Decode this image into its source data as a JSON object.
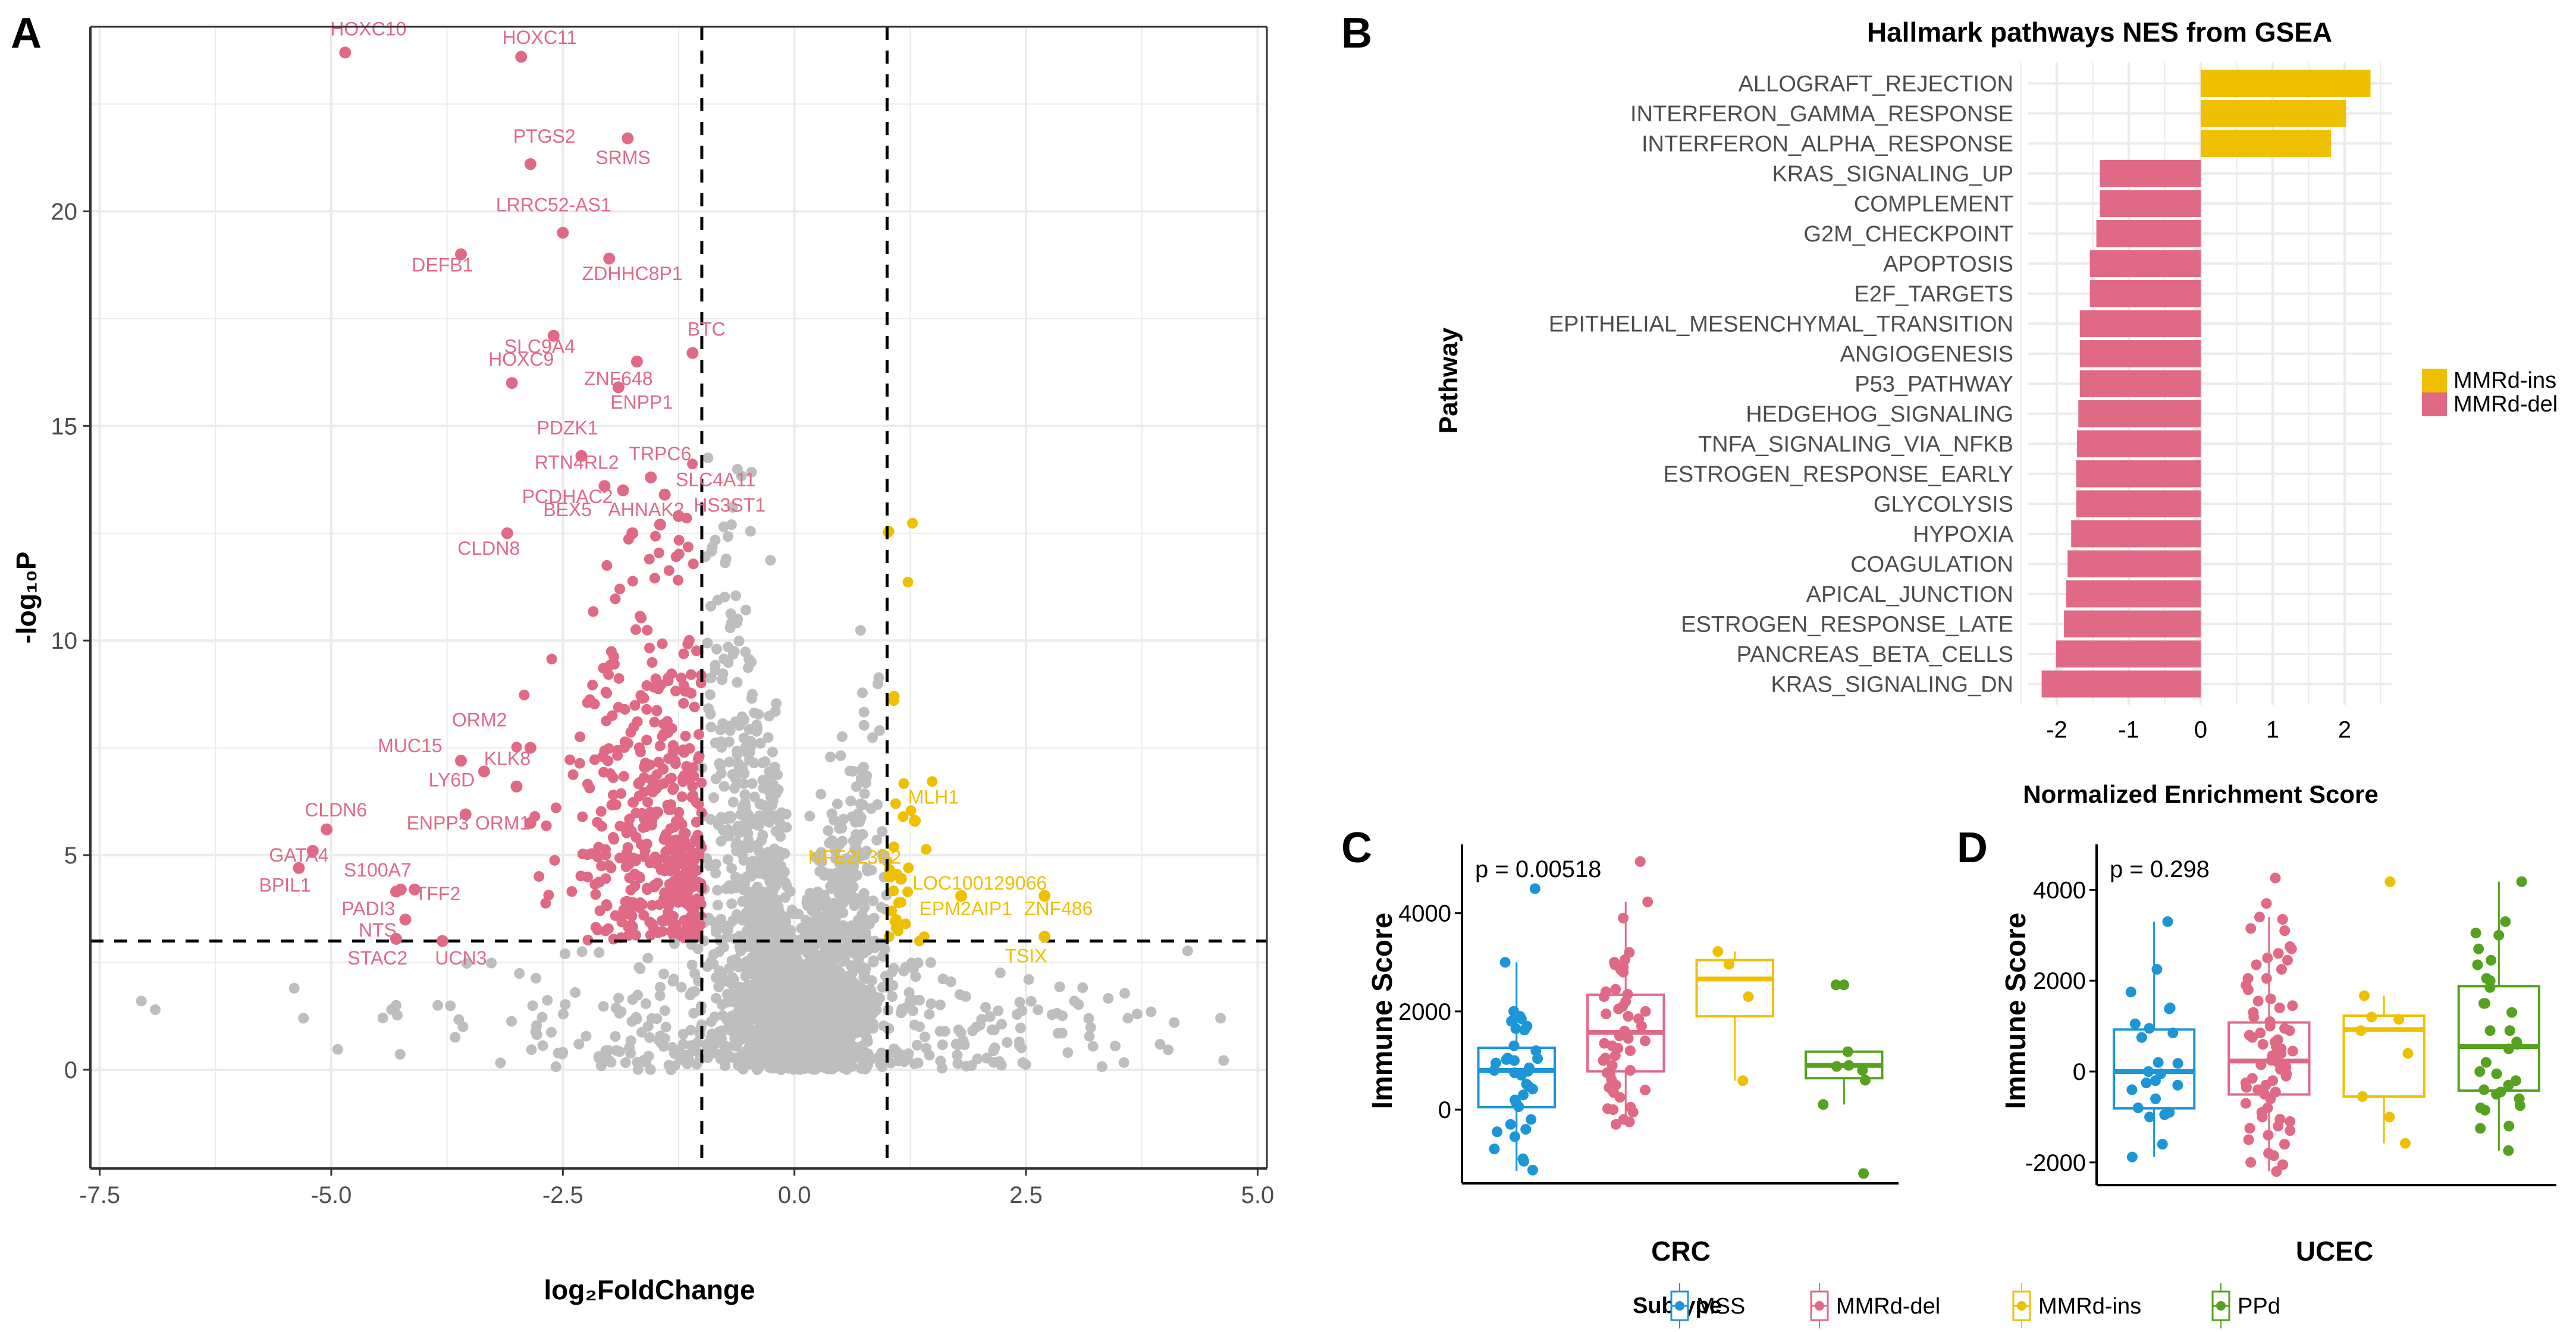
{
  "colors": {
    "del": "#E06A86",
    "ins": "#EFC000",
    "ns": "#BEBEBE",
    "mss": "#1C96D7",
    "ppd": "#54A21F",
    "grid": "#EBEBEB"
  },
  "chart_data": [
    {
      "panel": "A",
      "type": "scatter",
      "title": "",
      "xlabel": "log₂FoldChange",
      "ylabel": "-log₁₀P",
      "xlim": [
        -7.6,
        5.1
      ],
      "ylim": [
        -2.3,
        24.3
      ],
      "xticks": [
        -7.5,
        -5.0,
        -2.5,
        0.0,
        2.5,
        5.0
      ],
      "xtick_labels": [
        "-7.5",
        "-5.0",
        "-2.5",
        "0.0",
        "2.5",
        "5.0"
      ],
      "yticks": [
        0,
        5,
        10,
        15,
        20
      ],
      "ytick_labels": [
        "0",
        "5",
        "10",
        "15",
        "20"
      ],
      "thresholds": {
        "log2fc": [
          -1,
          1
        ],
        "neg_log10_p": 3
      },
      "grid": true,
      "labeled_points": [
        {
          "gene": "HOXC10",
          "x": -4.85,
          "y": 23.7,
          "group": "del",
          "lx": -4.6,
          "ly": 24.1
        },
        {
          "gene": "HOXC11",
          "x": -2.95,
          "y": 23.6,
          "group": "del",
          "lx": -2.75,
          "ly": 23.9
        },
        {
          "gene": "SRMS",
          "x": -1.8,
          "y": 21.7,
          "group": "del",
          "lx": -1.85,
          "ly": 21.1
        },
        {
          "gene": "PTGS2",
          "x": -2.85,
          "y": 21.1,
          "group": "del",
          "lx": -2.7,
          "ly": 21.6
        },
        {
          "gene": "LRRC52-AS1",
          "x": -2.5,
          "y": 19.5,
          "group": "del",
          "lx": -2.6,
          "ly": 20.0
        },
        {
          "gene": "DEFB1",
          "x": -3.6,
          "y": 19.0,
          "group": "del",
          "lx": -3.8,
          "ly": 18.6
        },
        {
          "gene": "ZDHHC8P1",
          "x": -2.0,
          "y": 18.9,
          "group": "del",
          "lx": -1.75,
          "ly": 18.4
        },
        {
          "gene": "SLC9A4",
          "x": -2.6,
          "y": 17.1,
          "group": "del",
          "lx": -2.75,
          "ly": 16.7
        },
        {
          "gene": "BTC",
          "x": -1.1,
          "y": 16.7,
          "group": "del",
          "lx": -0.95,
          "ly": 17.1
        },
        {
          "gene": "ZNF648",
          "x": -1.7,
          "y": 16.5,
          "group": "del",
          "lx": -1.9,
          "ly": 15.95
        },
        {
          "gene": "HOXC9",
          "x": -3.05,
          "y": 16.0,
          "group": "del",
          "lx": -2.95,
          "ly": 16.4
        },
        {
          "gene": "ENPP1",
          "x": -1.9,
          "y": 15.9,
          "group": "del",
          "lx": -1.65,
          "ly": 15.4
        },
        {
          "gene": "PDZK1",
          "x": -2.3,
          "y": 14.3,
          "group": "del",
          "lx": -2.45,
          "ly": 14.8
        },
        {
          "gene": "TRPC6",
          "x": -1.55,
          "y": 13.8,
          "group": "del",
          "lx": -1.45,
          "ly": 14.2
        },
        {
          "gene": "RTN4RL2",
          "x": -2.05,
          "y": 13.6,
          "group": "del",
          "lx": -2.35,
          "ly": 14.0
        },
        {
          "gene": "SLC4A11",
          "x": -1.4,
          "y": 13.4,
          "group": "del",
          "lx": -0.85,
          "ly": 13.6
        },
        {
          "gene": "PCDHAC2",
          "x": -1.85,
          "y": 13.5,
          "group": "del",
          "lx": -2.45,
          "ly": 13.2
        },
        {
          "gene": "HS3ST1",
          "x": -1.25,
          "y": 12.9,
          "group": "del",
          "lx": -0.7,
          "ly": 13.0
        },
        {
          "gene": "AHNAK2",
          "x": -1.45,
          "y": 12.7,
          "group": "del",
          "lx": -1.6,
          "ly": 12.9
        },
        {
          "gene": "BEX5",
          "x": -1.75,
          "y": 12.5,
          "group": "del",
          "lx": -2.45,
          "ly": 12.9
        },
        {
          "gene": "CLDN8",
          "x": -3.1,
          "y": 12.5,
          "group": "del",
          "lx": -3.3,
          "ly": 12.0
        },
        {
          "gene": "ORM2",
          "x": -2.85,
          "y": 7.5,
          "group": "del",
          "lx": -3.4,
          "ly": 8.0
        },
        {
          "gene": "MUC15",
          "x": -3.6,
          "y": 7.2,
          "group": "del",
          "lx": -4.15,
          "ly": 7.4
        },
        {
          "gene": "KLK8",
          "x": -3.35,
          "y": 6.95,
          "group": "del",
          "lx": -3.1,
          "ly": 7.1
        },
        {
          "gene": "LY6D",
          "x": -3.0,
          "y": 6.6,
          "group": "del",
          "lx": -3.7,
          "ly": 6.6
        },
        {
          "gene": "CLDN6",
          "x": -5.05,
          "y": 5.6,
          "group": "del",
          "lx": -4.95,
          "ly": 5.9
        },
        {
          "gene": "ENPP3",
          "x": -3.55,
          "y": 5.95,
          "group": "del",
          "lx": -3.85,
          "ly": 5.6
        },
        {
          "gene": "ORM1",
          "x": -2.85,
          "y": 5.75,
          "group": "del",
          "lx": -3.15,
          "ly": 5.6
        },
        {
          "gene": "GATA4",
          "x": -5.2,
          "y": 5.1,
          "group": "del",
          "lx": -5.35,
          "ly": 4.85
        },
        {
          "gene": "S100A7",
          "x": -4.1,
          "y": 4.2,
          "group": "del",
          "lx": -4.5,
          "ly": 4.5
        },
        {
          "gene": "BPIL1",
          "x": -5.35,
          "y": 4.7,
          "group": "del",
          "lx": -5.5,
          "ly": 4.15
        },
        {
          "gene": "TFF2",
          "x": -4.25,
          "y": 4.2,
          "group": "del",
          "lx": -3.85,
          "ly": 3.95
        },
        {
          "gene": "PADI3",
          "x": -4.3,
          "y": 4.15,
          "group": "del",
          "lx": -4.6,
          "ly": 3.6
        },
        {
          "gene": "NTS",
          "x": -4.2,
          "y": 3.5,
          "group": "del",
          "lx": -4.5,
          "ly": 3.1
        },
        {
          "gene": "STAC2",
          "x": -4.3,
          "y": 3.05,
          "group": "del",
          "lx": -4.5,
          "ly": 2.45
        },
        {
          "gene": "UCN3",
          "x": -3.8,
          "y": 3.0,
          "group": "del",
          "lx": -3.6,
          "ly": 2.45
        },
        {
          "gene": "MLH1",
          "x": 1.3,
          "y": 5.8,
          "group": "ins",
          "lx": 1.5,
          "ly": 6.2
        },
        {
          "gene": "NFE2L3P2",
          "x": 1.03,
          "y": 4.5,
          "group": "ins",
          "lx": 0.65,
          "ly": 4.8
        },
        {
          "gene": "LOC100129066",
          "x": 1.15,
          "y": 4.45,
          "group": "ins",
          "lx": 2.0,
          "ly": 4.2
        },
        {
          "gene": "EPM2AIP1",
          "x": 1.8,
          "y": 4.05,
          "group": "ins",
          "lx": 1.85,
          "ly": 3.6
        },
        {
          "gene": "ZNF486",
          "x": 2.7,
          "y": 4.05,
          "group": "ins",
          "lx": 2.85,
          "ly": 3.6
        },
        {
          "gene": "TSIX",
          "x": 2.7,
          "y": 3.1,
          "group": "ins",
          "lx": 2.5,
          "ly": 2.5
        }
      ]
    },
    {
      "panel": "B",
      "type": "bar",
      "orientation": "horizontal",
      "title": "Hallmark pathways NES from GSEA",
      "xlabel": "Normalized Enrichment Score",
      "ylabel": "Pathway",
      "xlim": [
        -2.45,
        2.6
      ],
      "xticks": [
        -2,
        -1,
        0,
        1,
        2
      ],
      "xtick_labels": [
        "-2",
        "-1",
        "0",
        "1",
        "2"
      ],
      "legend": [
        {
          "label": "MMRd-ins",
          "group": "ins"
        },
        {
          "label": "MMRd-del",
          "group": "del"
        }
      ],
      "legend_position": "right",
      "categories": [
        "ALLOGRAFT_REJECTION",
        "INTERFERON_GAMMA_RESPONSE",
        "INTERFERON_ALPHA_RESPONSE",
        "KRAS_SIGNALING_UP",
        "COMPLEMENT",
        "G2M_CHECKPOINT",
        "APOPTOSIS",
        "E2F_TARGETS",
        "EPITHELIAL_MESENCHYMAL_TRANSITION",
        "ANGIOGENESIS",
        "P53_PATHWAY",
        "HEDGEHOG_SIGNALING",
        "TNFA_SIGNALING_VIA_NFKB",
        "ESTROGEN_RESPONSE_EARLY",
        "GLYCOLYSIS",
        "HYPOXIA",
        "COAGULATION",
        "APICAL_JUNCTION",
        "ESTROGEN_RESPONSE_LATE",
        "PANCREAS_BETA_CELLS",
        "KRAS_SIGNALING_DN"
      ],
      "values": [
        2.36,
        2.02,
        1.81,
        -1.4,
        -1.4,
        -1.45,
        -1.54,
        -1.54,
        -1.68,
        -1.68,
        -1.68,
        -1.7,
        -1.72,
        -1.73,
        -1.73,
        -1.8,
        -1.85,
        -1.87,
        -1.9,
        -2.01,
        -2.21
      ],
      "groups": [
        "ins",
        "ins",
        "ins",
        "del",
        "del",
        "del",
        "del",
        "del",
        "del",
        "del",
        "del",
        "del",
        "del",
        "del",
        "del",
        "del",
        "del",
        "del",
        "del",
        "del",
        "del"
      ]
    },
    {
      "panel": "C",
      "type": "box",
      "title": "",
      "xlabel": "CRC",
      "ylabel": "Immune Score",
      "annotation": "p = 0.00518",
      "ylim": [
        -1500,
        5400
      ],
      "yticks": [
        0,
        2000,
        4000
      ],
      "ytick_labels": [
        "0",
        "2000",
        "4000"
      ],
      "boxes": [
        {
          "group": "MSS",
          "color": "mss",
          "lower": -1250,
          "q1": 50,
          "median": 800,
          "q3": 1260,
          "upper": 3000,
          "points": [
            4500,
            3000,
            2000,
            1900,
            1850,
            1800,
            1700,
            1650,
            1620,
            1300,
            1200,
            1050,
            1040,
            1020,
            1000,
            950,
            850,
            800,
            780,
            750,
            700,
            520,
            480,
            420,
            300,
            200,
            150,
            60,
            -200,
            -300,
            -400,
            -450,
            -550,
            -800,
            -1000,
            -1050,
            -1230
          ]
        },
        {
          "group": "MMRd-del",
          "color": "del",
          "lower": -290,
          "q1": 780,
          "median": 1575,
          "q3": 2340,
          "upper": 4230,
          "points": [
            5050,
            4230,
            3900,
            3200,
            3050,
            3000,
            2950,
            2900,
            2850,
            2800,
            2450,
            2400,
            2350,
            2300,
            2200,
            2100,
            2050,
            2000,
            1950,
            1900,
            1850,
            1700,
            1600,
            1500,
            1450,
            1400,
            1350,
            1300,
            1250,
            1200,
            1100,
            1050,
            1000,
            900,
            800,
            750,
            700,
            600,
            500,
            450,
            400,
            350,
            250,
            50,
            20,
            0,
            -50,
            -200,
            -250,
            -300
          ]
        },
        {
          "group": "MMRd-ins",
          "color": "ins",
          "lower": 590,
          "q1": 1900,
          "median": 2660,
          "q3": 3045,
          "upper": 3220,
          "points": [
            3220,
            2960,
            2300,
            590
          ]
        },
        {
          "group": "PPd",
          "color": "ppd",
          "lower": 105,
          "q1": 640,
          "median": 900,
          "q3": 1180,
          "upper": 1180,
          "points": [
            2540,
            2540,
            1180,
            900,
            880,
            800,
            600,
            105,
            -1300
          ]
        }
      ]
    },
    {
      "panel": "D",
      "type": "box",
      "title": "",
      "xlabel": "UCEC",
      "ylabel": "Immune Score",
      "annotation": "p = 0.298",
      "ylim": [
        -2500,
        5000
      ],
      "yticks": [
        -2000,
        0,
        2000,
        4000
      ],
      "ytick_labels": [
        "-2000",
        "0",
        "2000",
        "4000"
      ],
      "boxes": [
        {
          "group": "MSS",
          "color": "mss",
          "lower": -1880,
          "q1": -810,
          "median": 0,
          "q3": 925,
          "upper": 3300,
          "points": [
            3300,
            2250,
            1750,
            1400,
            1380,
            1050,
            950,
            850,
            750,
            200,
            180,
            0,
            -50,
            -200,
            -250,
            -300,
            -400,
            -600,
            -800,
            -900,
            -950,
            -1000,
            -1600,
            -1880
          ]
        },
        {
          "group": "MMRd-del",
          "color": "del",
          "lower": -2200,
          "q1": -505,
          "median": 230,
          "q3": 1080,
          "upper": 3400,
          "points": [
            4260,
            3700,
            3400,
            3350,
            3100,
            3150,
            2750,
            2700,
            2600,
            2500,
            2450,
            2350,
            2250,
            2050,
            2050,
            1900,
            1800,
            1600,
            1550,
            1450,
            1400,
            1300,
            1200,
            1100,
            1000,
            950,
            900,
            850,
            800,
            750,
            700,
            650,
            600,
            550,
            500,
            450,
            400,
            350,
            300,
            250,
            200,
            150,
            100,
            50,
            0,
            -50,
            -100,
            -150,
            -200,
            -250,
            -300,
            -350,
            -400,
            -450,
            -500,
            -600,
            -700,
            -800,
            -900,
            -1000,
            -1050,
            -1100,
            -1200,
            -1250,
            -1300,
            -1400,
            -1500,
            -1600,
            -1800,
            -1850,
            -2000,
            -2050,
            -2200
          ]
        },
        {
          "group": "MMRd-ins",
          "color": "ins",
          "lower": -1580,
          "q1": -550,
          "median": 925,
          "q3": 1230,
          "upper": 1670,
          "points": [
            4180,
            1670,
            1200,
            1150,
            900,
            400,
            -550,
            -1000,
            -1580
          ]
        },
        {
          "group": "PPd",
          "color": "ppd",
          "lower": -1740,
          "q1": -420,
          "median": 550,
          "q3": 1880,
          "upper": 4180,
          "points": [
            4180,
            3300,
            3050,
            3000,
            2700,
            2450,
            2350,
            2050,
            2000,
            1850,
            1500,
            1500,
            1300,
            900,
            900,
            650,
            600,
            500,
            200,
            0,
            -50,
            -200,
            -300,
            -400,
            -450,
            -500,
            -600,
            -750,
            -800,
            -850,
            -1200,
            -1250,
            -1740
          ]
        }
      ]
    }
  ],
  "shared_legend": {
    "title": "Subtype",
    "items": [
      {
        "label": "MSS",
        "color": "mss"
      },
      {
        "label": "MMRd-del",
        "color": "del"
      },
      {
        "label": "MMRd-ins",
        "color": "ins"
      },
      {
        "label": "PPd",
        "color": "ppd"
      }
    ]
  },
  "panel_letters": [
    "A",
    "B",
    "C",
    "D"
  ]
}
